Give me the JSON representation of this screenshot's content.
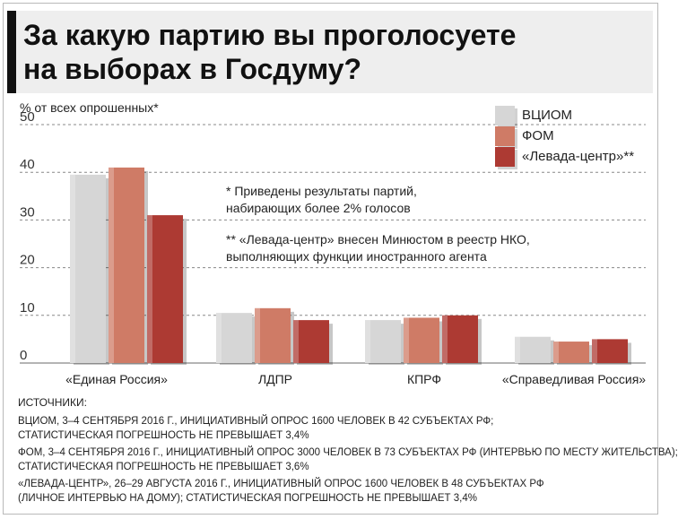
{
  "title": "За какую партию вы проголосуете\nна выборах в Госдуму?",
  "chart_data": {
    "type": "bar",
    "ylabel": "% от всех опрошенных*",
    "ylim": [
      0,
      50
    ],
    "yticks": [
      "50",
      "40",
      "30",
      "20",
      "10",
      "0"
    ],
    "grid": true,
    "legend_position": "top-right",
    "categories": [
      "«Единая Россия»",
      "ЛДПР",
      "КПРФ",
      "«Справедливая Россия»"
    ],
    "series": [
      {
        "name": "ВЦИОМ",
        "color": "#d6d6d6",
        "values": [
          39.5,
          10.5,
          9,
          5.5
        ]
      },
      {
        "name": "ФОМ",
        "color": "#cf7b66",
        "values": [
          41,
          11.5,
          9.5,
          4.5
        ]
      },
      {
        "name": "«Левада-центр»**",
        "color": "#ad3a33",
        "values": [
          31,
          9,
          10,
          5
        ]
      }
    ],
    "annotations": [
      "* Приведены результаты партий,\n  набирающих более 2% голосов",
      "** «Левада-центр» внесен Минюстом в реестр НКО,\n    выполняющих функции иностранного агента"
    ]
  },
  "sources": {
    "heading": "ИСТОЧНИКИ:",
    "lines": [
      "ВЦИОМ, 3–4 СЕНТЯБРЯ 2016 Г., ИНИЦИАТИВНЫЙ ОПРОС 1600 ЧЕЛОВЕК В 42 СУБЪЕКТАХ РФ;",
      "СТАТИСТИЧЕСКАЯ ПОГРЕШНОСТЬ НЕ ПРЕВЫШАЕТ 3,4%",
      "ФОМ, 3–4 СЕНТЯБРЯ 2016 Г., ИНИЦИАТИВНЫЙ ОПРОС 3000 ЧЕЛОВЕК В 73 СУБЪЕКТАХ РФ (ИНТЕРВЬЮ ПО МЕСТУ ЖИТЕЛЬСТВА);",
      "СТАТИСТИЧЕСКАЯ ПОГРЕШНОСТЬ НЕ ПРЕВЫШАЕТ 3,6%",
      "«ЛЕВАДА-ЦЕНТР», 26–29 АВГУСТА 2016 Г., ИНИЦИАТИВНЫЙ ОПРОС 1600 ЧЕЛОВЕК В 48 СУБЪЕКТАХ РФ",
      "(ЛИЧНОЕ ИНТЕРВЬЮ НА ДОМУ); СТАТИСТИЧЕСКАЯ ПОГРЕШНОСТЬ НЕ ПРЕВЫШАЕТ 3,4%"
    ]
  }
}
